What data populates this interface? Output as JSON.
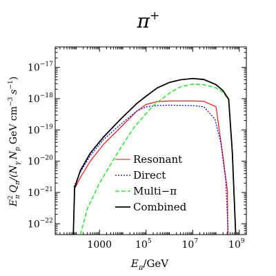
{
  "chart_data": {
    "type": "line",
    "title": "π",
    "title_sup": "+",
    "xlabel_main": "E",
    "xlabel_sub": "π",
    "xlabel_unit": "/GeV",
    "ylabel_parts": {
      "e": "E",
      "e_sup": "2",
      "e_sub": "π",
      "q": "Q",
      "q_sub": "π",
      "n1": "/(N",
      "n1_sub": "γ",
      "n2": "N",
      "n2_sub": "p",
      "unit": "GeV cm",
      "cm_sup": "−3",
      "s": "s",
      "s_sup": "−1",
      "close": ")"
    },
    "xscale": "log",
    "yscale": "log",
    "xlim": [
      12.5,
      2000000000
    ],
    "ylim": [
      4.5e-23,
      4.5e-17
    ],
    "x_ticks": [
      {
        "value": 1000,
        "label": "1000",
        "sup": ""
      },
      {
        "value": 100000,
        "label": "10",
        "sup": "5"
      },
      {
        "value": 10000000,
        "label": "10",
        "sup": "7"
      },
      {
        "value": 1000000000,
        "label": "10",
        "sup": "9"
      }
    ],
    "y_ticks": [
      {
        "value": 1e-22,
        "label": "10",
        "sup": "−22"
      },
      {
        "value": 1e-21,
        "label": "10",
        "sup": "−21"
      },
      {
        "value": 1e-20,
        "label": "10",
        "sup": "−20"
      },
      {
        "value": 1e-19,
        "label": "10",
        "sup": "−19"
      },
      {
        "value": 1e-18,
        "label": "10",
        "sup": "−18"
      },
      {
        "value": 1e-17,
        "label": "10",
        "sup": "−17"
      }
    ],
    "legend_position": "lower-center",
    "series": [
      {
        "name": "Resonant",
        "color": "#ff0000",
        "style": "solid",
        "points": [
          [
            80,
            1.2e-21
          ],
          [
            150,
            3e-21
          ],
          [
            400,
            1e-20
          ],
          [
            1500,
            3.5e-20
          ],
          [
            8000,
            1.2e-19
          ],
          [
            40000,
            4e-19
          ],
          [
            100000,
            6.5e-19
          ],
          [
            300000,
            8e-19
          ],
          [
            1000000,
            8.5e-19
          ],
          [
            10000000,
            8.5e-19
          ],
          [
            30000000,
            8.2e-19
          ],
          [
            100000000,
            5.5e-19
          ],
          [
            200000000,
            1.4e-20
          ],
          [
            310000000,
            1.1e-21
          ],
          [
            320000000,
            4.5e-23
          ]
        ]
      },
      {
        "name": "Direct",
        "color": "#0000ee",
        "style": "dotted",
        "points": [
          [
            80,
            1.5e-21
          ],
          [
            150,
            4.5e-21
          ],
          [
            400,
            1.5e-20
          ],
          [
            1500,
            5e-20
          ],
          [
            8000,
            1.5e-19
          ],
          [
            40000,
            4e-19
          ],
          [
            100000,
            5.5e-19
          ],
          [
            300000,
            6e-19
          ],
          [
            1000000,
            6.2e-19
          ],
          [
            10000000,
            6e-19
          ],
          [
            30000000,
            5.5e-19
          ],
          [
            90000000,
            2.2e-19
          ],
          [
            160000000,
            4e-20
          ],
          [
            260000000,
            2.5e-21
          ],
          [
            320000000,
            1e-22
          ],
          [
            330000000,
            4.5e-23
          ]
        ]
      },
      {
        "name": "Multi−π",
        "color": "#00ee00",
        "style": "dashed",
        "points": [
          [
            150,
            4.5e-23
          ],
          [
            300,
            3e-22
          ],
          [
            1000,
            2e-21
          ],
          [
            5000,
            1.5e-20
          ],
          [
            30000,
            1.2e-19
          ],
          [
            200000,
            6e-19
          ],
          [
            1000000,
            1.5e-18
          ],
          [
            3000000,
            2.4e-18
          ],
          [
            10000000,
            2.9e-18
          ],
          [
            30000000,
            2.8e-18
          ],
          [
            100000000,
            2.2e-18
          ],
          [
            200000000,
            1.6e-18
          ],
          [
            350000000,
            9e-19
          ],
          [
            500000000,
            1.5e-20
          ],
          [
            700000000,
            4.5e-23
          ]
        ]
      },
      {
        "name": "Combined",
        "color": "#000000",
        "style": "solid",
        "points": [
          [
            75,
            4.5e-23
          ],
          [
            85,
            1.4e-21
          ],
          [
            150,
            5e-21
          ],
          [
            400,
            1.8e-20
          ],
          [
            1500,
            6e-20
          ],
          [
            8000,
            2.2e-19
          ],
          [
            40000,
            7e-19
          ],
          [
            100000,
            1.2e-18
          ],
          [
            300000,
            2.2e-18
          ],
          [
            1000000,
            3.3e-18
          ],
          [
            3000000,
            4e-18
          ],
          [
            10000000,
            4.4e-18
          ],
          [
            30000000,
            4.1e-18
          ],
          [
            100000000,
            2.8e-18
          ],
          [
            200000000,
            1.8e-18
          ],
          [
            350000000,
            9.5e-19
          ],
          [
            500000000,
            2e-20
          ],
          [
            700000000,
            4.5e-23
          ]
        ]
      }
    ]
  }
}
